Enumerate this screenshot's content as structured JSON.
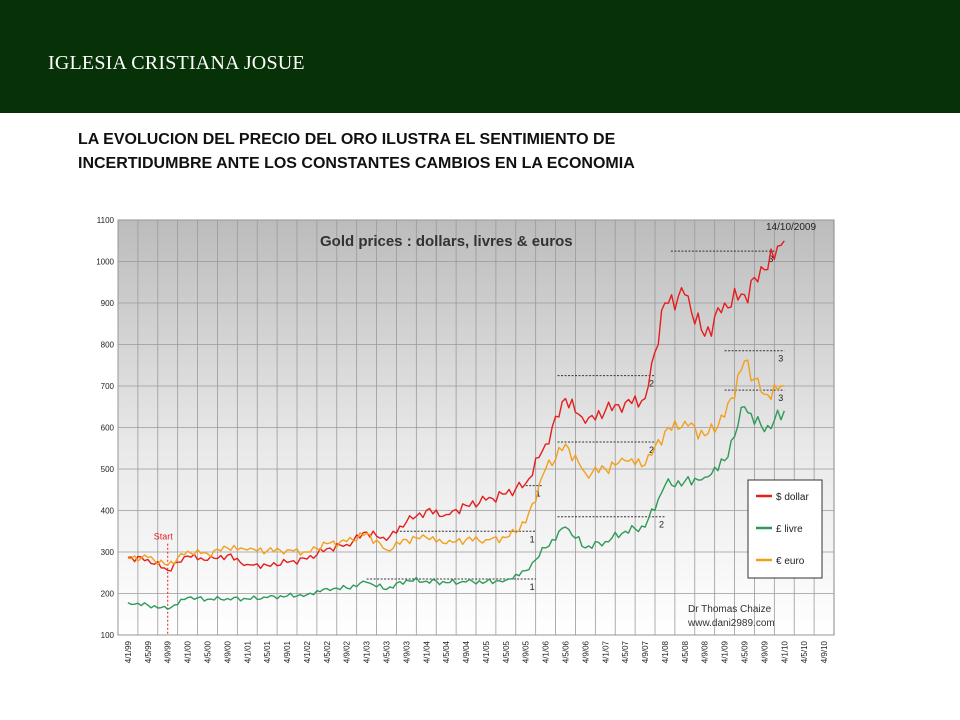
{
  "header": {
    "title": "IGLESIA CRISTIANA JOSUE",
    "background": "#073207"
  },
  "slide": {
    "heading_line1": "LA EVOLUCION DEL PRECIO DEL ORO ILUSTRA EL SENTIMIENTO DE",
    "heading_line2": "INCERTIDUMBRE ANTE LOS CONSTANTES CAMBIOS EN LA ECONOMIA"
  },
  "chart_data": {
    "type": "line",
    "title": "Gold prices : dollars, livres & euros",
    "date_label": "14/10/2009",
    "start_label": "Start",
    "credit_name": "Dr Thomas Chaize",
    "credit_url": "www.dani2989.com",
    "ylim": [
      100,
      1100
    ],
    "yticks": [
      100,
      200,
      300,
      400,
      500,
      600,
      700,
      800,
      900,
      1000,
      1100
    ],
    "xticks": [
      "4/1/99",
      "4/5/99",
      "4/9/99",
      "4/1/00",
      "4/5/00",
      "4/9/00",
      "4/1/01",
      "4/5/01",
      "4/9/01",
      "4/1/02",
      "4/5/02",
      "4/9/02",
      "4/1/03",
      "4/5/03",
      "4/9/03",
      "4/1/04",
      "4/5/04",
      "4/9/04",
      "4/1/05",
      "4/5/05",
      "4/9/05",
      "4/1/06",
      "4/5/06",
      "4/9/06",
      "4/1/07",
      "4/5/07",
      "4/9/07",
      "4/1/08",
      "4/5/08",
      "4/9/08",
      "4/1/09",
      "4/5/09",
      "4/9/09",
      "4/1/10",
      "4/5/10",
      "4/9/10"
    ],
    "grid": true,
    "legend_position": "bottom-right",
    "start_index": 2,
    "series": [
      {
        "name": "$ dollar",
        "color": "#e41e1e",
        "values": [
          287,
          282,
          256,
          290,
          280,
          292,
          270,
          268,
          275,
          283,
          308,
          318,
          348,
          328,
          372,
          400,
          390,
          412,
          425,
          440,
          465,
          560,
          670,
          610,
          640,
          660,
          670,
          900,
          920,
          820,
          900,
          920,
          980,
          1050
        ]
      },
      {
        "name": "£ livre",
        "color": "#2e9a58",
        "values": [
          178,
          172,
          162,
          190,
          186,
          188,
          187,
          190,
          194,
          197,
          212,
          213,
          227,
          210,
          232,
          230,
          226,
          228,
          228,
          232,
          255,
          310,
          360,
          310,
          325,
          350,
          360,
          460,
          470,
          480,
          520,
          650,
          590,
          640
        ]
      },
      {
        "name": "€ euro",
        "color": "#f2a01c",
        "values": [
          285,
          287,
          268,
          302,
          296,
          310,
          305,
          303,
          305,
          300,
          320,
          325,
          345,
          305,
          330,
          335,
          320,
          330,
          330,
          335,
          370,
          500,
          560,
          490,
          500,
          520,
          510,
          590,
          615,
          580,
          625,
          760,
          680,
          700
        ]
      }
    ],
    "annotations": [
      {
        "label": "1",
        "series": "$ dollar",
        "y": 460,
        "x_from": 20,
        "x_to": 20.8
      },
      {
        "label": "2",
        "series": "$ dollar",
        "y": 725,
        "x_from": 21.6,
        "x_to": 26.5
      },
      {
        "label": "3",
        "series": "$ dollar",
        "y": 1025,
        "x_from": 27.3,
        "x_to": 32.5
      },
      {
        "label": "1",
        "series": "€ euro",
        "y": 350,
        "x_from": 13.5,
        "x_to": 20.5
      },
      {
        "label": "2",
        "series": "€ euro",
        "y": 565,
        "x_from": 21.6,
        "x_to": 26.5
      },
      {
        "label": "3",
        "series": "€ euro",
        "y": 785,
        "x_from": 30,
        "x_to": 33
      },
      {
        "label": "1",
        "series": "£ livre",
        "y": 235,
        "x_from": 12,
        "x_to": 20.5
      },
      {
        "label": "2",
        "series": "£ livre",
        "y": 385,
        "x_from": 21.6,
        "x_to": 27
      },
      {
        "label": "3",
        "series": "£ livre",
        "y": 690,
        "x_from": 30,
        "x_to": 33
      }
    ]
  }
}
